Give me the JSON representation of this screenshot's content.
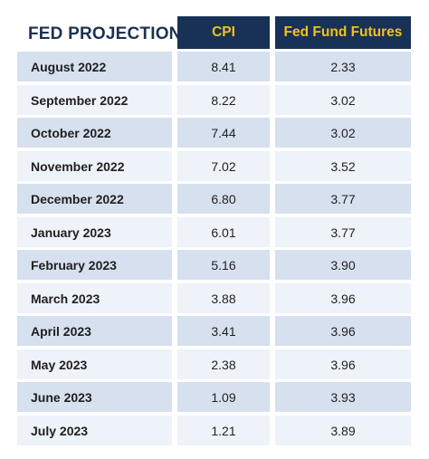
{
  "chart_data": {
    "type": "table",
    "title": "FED PROJECTIONS",
    "columns": [
      "CPI",
      "Fed Fund Futures"
    ],
    "rows": [
      {
        "month": "August 2022",
        "cpi": "8.41",
        "fed_fund_futures": "2.33"
      },
      {
        "month": "September 2022",
        "cpi": "8.22",
        "fed_fund_futures": "3.02"
      },
      {
        "month": "October 2022",
        "cpi": "7.44",
        "fed_fund_futures": "3.02"
      },
      {
        "month": "November 2022",
        "cpi": "7.02",
        "fed_fund_futures": "3.52"
      },
      {
        "month": "December 2022",
        "cpi": "6.80",
        "fed_fund_futures": "3.77"
      },
      {
        "month": "January 2023",
        "cpi": "6.01",
        "fed_fund_futures": "3.77"
      },
      {
        "month": "February 2023",
        "cpi": "5.16",
        "fed_fund_futures": "3.90"
      },
      {
        "month": "March 2023",
        "cpi": "3.88",
        "fed_fund_futures": "3.96"
      },
      {
        "month": "April 2023",
        "cpi": "3.41",
        "fed_fund_futures": "3.96"
      },
      {
        "month": "May 2023",
        "cpi": "2.38",
        "fed_fund_futures": "3.96"
      },
      {
        "month": "June 2023",
        "cpi": "1.09",
        "fed_fund_futures": "3.93"
      },
      {
        "month": "July 2023",
        "cpi": "1.21",
        "fed_fund_futures": "3.89"
      }
    ]
  },
  "colors": {
    "header_bg": "#183156",
    "header_text": "#f3c21a",
    "title_text": "#1d3250",
    "row_shaded": "#d6e0ef",
    "row_light": "#eef2f9"
  }
}
